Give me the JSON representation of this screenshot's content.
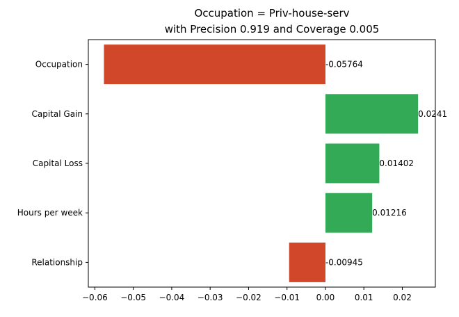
{
  "chart_data": {
    "type": "bar",
    "orientation": "horizontal",
    "title_lines": [
      "Occupation = Priv-house-serv",
      "with Precision 0.919 and Coverage 0.005"
    ],
    "xlabel": "",
    "ylabel": "",
    "categories": [
      "Occupation",
      "Capital Gain",
      "Capital Loss",
      "Hours per week",
      "Relationship"
    ],
    "values": [
      -0.05764,
      0.0241,
      0.01402,
      0.01216,
      -0.00945
    ],
    "value_labels": [
      "-0.05764",
      "0.0241",
      "0.01402",
      "0.01216",
      "-0.00945"
    ],
    "xlim": [
      -0.0617,
      0.0286
    ],
    "xticks": [
      -0.06,
      -0.05,
      -0.04,
      -0.03,
      -0.02,
      -0.01,
      0.0,
      0.01,
      0.02
    ],
    "xtick_labels": [
      "−0.06",
      "−0.05",
      "−0.04",
      "−0.03",
      "−0.02",
      "−0.01",
      "0.00",
      "0.01",
      "0.02"
    ],
    "grid": false,
    "colors": {
      "positive": "#33aa55",
      "negative": "#d0472a"
    }
  }
}
